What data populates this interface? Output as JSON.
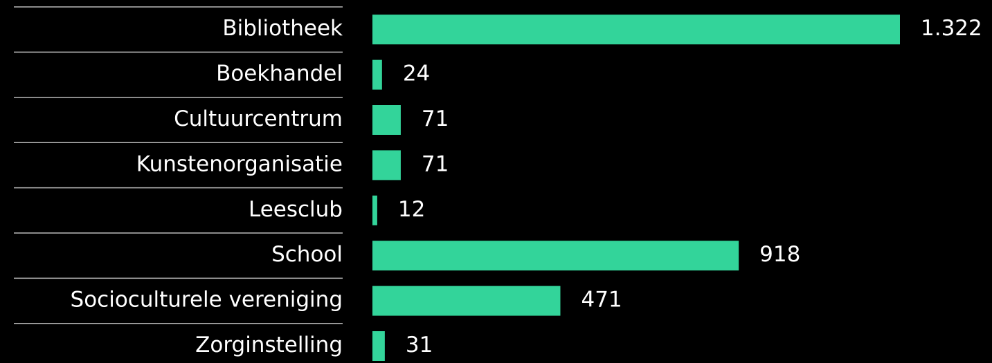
{
  "chart_data": {
    "type": "hbar",
    "categories": [
      "Bibliotheek",
      "Boekhandel",
      "Cultuurcentrum",
      "Kunstenorganisatie",
      "Leesclub",
      "School",
      "Socioculturele vereniging",
      "Zorginstelling"
    ],
    "values": [
      1322,
      24,
      71,
      71,
      12,
      918,
      471,
      31
    ],
    "value_labels": [
      "1.322",
      "24",
      "71",
      "71",
      "12",
      "918",
      "471",
      "31"
    ],
    "color": "#33d49a"
  }
}
